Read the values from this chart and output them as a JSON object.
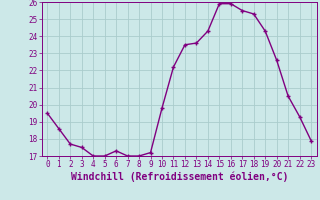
{
  "x": [
    0,
    1,
    2,
    3,
    4,
    5,
    6,
    7,
    8,
    9,
    10,
    11,
    12,
    13,
    14,
    15,
    16,
    17,
    18,
    19,
    20,
    21,
    22,
    23
  ],
  "y": [
    19.5,
    18.6,
    17.7,
    17.5,
    17.0,
    17.0,
    17.3,
    17.0,
    17.0,
    17.2,
    19.8,
    22.2,
    23.5,
    23.6,
    24.3,
    25.9,
    25.9,
    25.5,
    25.3,
    24.3,
    22.6,
    20.5,
    19.3,
    17.9
  ],
  "line_color": "#800080",
  "marker": "+",
  "marker_color": "#800080",
  "bg_color": "#cce8e8",
  "grid_color": "#aacccc",
  "xlabel": "Windchill (Refroidissement éolien,°C)",
  "ylim": [
    17,
    26
  ],
  "xlim_min": -0.5,
  "xlim_max": 23.5,
  "yticks": [
    17,
    18,
    19,
    20,
    21,
    22,
    23,
    24,
    25,
    26
  ],
  "xticks": [
    0,
    1,
    2,
    3,
    4,
    5,
    6,
    7,
    8,
    9,
    10,
    11,
    12,
    13,
    14,
    15,
    16,
    17,
    18,
    19,
    20,
    21,
    22,
    23
  ],
  "tick_label_fontsize": 5.5,
  "xlabel_fontsize": 7.0,
  "line_width": 1.0,
  "marker_size": 3.5
}
